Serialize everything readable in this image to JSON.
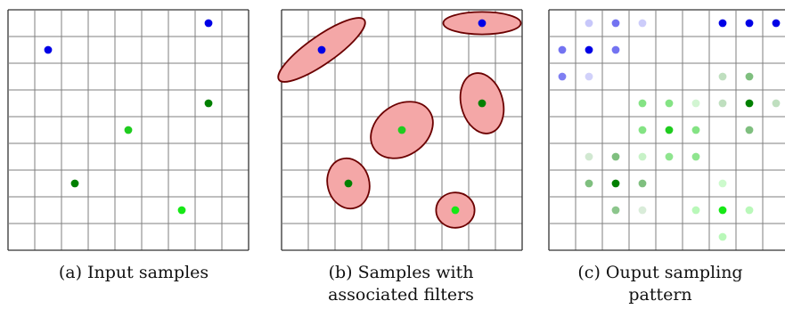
{
  "colors": {
    "grid": "#7f7f7f",
    "blue": "#0000e6",
    "green_dark": "#008000",
    "green_mid": "#1fcc1f",
    "green_bright": "#16e816",
    "ellipse_fill": "#f4a7a7",
    "ellipse_stroke": "#6b0000"
  },
  "panels": [
    {
      "id": "a",
      "caption_lines": [
        "(a) Input samples"
      ],
      "samples": [
        {
          "col": 7.5,
          "row": 0.5,
          "color": "blue"
        },
        {
          "col": 1.5,
          "row": 1.5,
          "color": "blue"
        },
        {
          "col": 7.5,
          "row": 3.5,
          "color": "green_dark"
        },
        {
          "col": 4.5,
          "row": 4.5,
          "color": "green_mid"
        },
        {
          "col": 2.5,
          "row": 6.5,
          "color": "green_dark"
        },
        {
          "col": 6.5,
          "row": 7.5,
          "color": "green_bright"
        }
      ]
    },
    {
      "id": "b",
      "caption_lines": [
        "(b) Samples with",
        "associated filters"
      ],
      "filters": [
        {
          "col": 7.5,
          "row": 0.5,
          "rx": 1.45,
          "ry": 0.42,
          "angle": 0,
          "color": "blue"
        },
        {
          "col": 1.5,
          "row": 1.5,
          "rx": 1.95,
          "ry": 0.52,
          "angle": -35,
          "color": "blue"
        },
        {
          "col": 7.5,
          "row": 3.5,
          "rx": 1.15,
          "ry": 0.78,
          "angle": 75,
          "color": "green_dark"
        },
        {
          "col": 4.5,
          "row": 4.5,
          "rx": 1.25,
          "ry": 0.95,
          "angle": -35,
          "color": "green_mid"
        },
        {
          "col": 2.5,
          "row": 6.5,
          "rx": 0.95,
          "ry": 0.78,
          "angle": 75,
          "color": "green_dark"
        },
        {
          "col": 6.5,
          "row": 7.5,
          "rx": 0.72,
          "ry": 0.66,
          "angle": 0,
          "color": "green_bright"
        }
      ]
    },
    {
      "id": "c",
      "caption_lines": [
        "(c) Ouput sampling",
        "pattern"
      ],
      "points": [
        {
          "col": 1.5,
          "row": 0.5,
          "color": "blue",
          "alpha": 0.22
        },
        {
          "col": 2.5,
          "row": 0.5,
          "color": "blue",
          "alpha": 0.55
        },
        {
          "col": 3.5,
          "row": 0.5,
          "color": "blue",
          "alpha": 0.2
        },
        {
          "col": 6.5,
          "row": 0.5,
          "color": "blue",
          "alpha": 1
        },
        {
          "col": 7.5,
          "row": 0.5,
          "color": "blue",
          "alpha": 1
        },
        {
          "col": 8.5,
          "row": 0.5,
          "color": "blue",
          "alpha": 1
        },
        {
          "col": 0.5,
          "row": 1.5,
          "color": "blue",
          "alpha": 0.55
        },
        {
          "col": 1.5,
          "row": 1.5,
          "color": "blue",
          "alpha": 1
        },
        {
          "col": 2.5,
          "row": 1.5,
          "color": "blue",
          "alpha": 0.55
        },
        {
          "col": 0.5,
          "row": 2.5,
          "color": "blue",
          "alpha": 0.5
        },
        {
          "col": 1.5,
          "row": 2.5,
          "color": "blue",
          "alpha": 0.18
        },
        {
          "col": 6.5,
          "row": 2.5,
          "color": "green_dark",
          "alpha": 0.25
        },
        {
          "col": 7.5,
          "row": 2.5,
          "color": "green_dark",
          "alpha": 0.5
        },
        {
          "col": 3.5,
          "row": 3.5,
          "color": "green_mid",
          "alpha": 0.55
        },
        {
          "col": 4.5,
          "row": 3.5,
          "color": "green_mid",
          "alpha": 0.55
        },
        {
          "col": 5.5,
          "row": 3.5,
          "color": "green_mid",
          "alpha": 0.2
        },
        {
          "col": 6.5,
          "row": 3.5,
          "color": "green_dark",
          "alpha": 0.25
        },
        {
          "col": 7.5,
          "row": 3.5,
          "color": "green_dark",
          "alpha": 1
        },
        {
          "col": 8.5,
          "row": 3.5,
          "color": "green_dark",
          "alpha": 0.25
        },
        {
          "col": 3.5,
          "row": 4.5,
          "color": "green_mid",
          "alpha": 0.55
        },
        {
          "col": 4.5,
          "row": 4.5,
          "color": "green_mid",
          "alpha": 1
        },
        {
          "col": 5.5,
          "row": 4.5,
          "color": "green_mid",
          "alpha": 0.55
        },
        {
          "col": 7.5,
          "row": 4.5,
          "color": "green_dark",
          "alpha": 0.5
        },
        {
          "col": 1.5,
          "row": 5.5,
          "color": "green_dark",
          "alpha": 0.18
        },
        {
          "col": 2.5,
          "row": 5.5,
          "color": "green_dark",
          "alpha": 0.5
        },
        {
          "col": 3.5,
          "row": 5.5,
          "color": "green_mid",
          "alpha": 0.25
        },
        {
          "col": 4.5,
          "row": 5.5,
          "color": "green_mid",
          "alpha": 0.5
        },
        {
          "col": 5.5,
          "row": 5.5,
          "color": "green_mid",
          "alpha": 0.5
        },
        {
          "col": 1.5,
          "row": 6.5,
          "color": "green_dark",
          "alpha": 0.5
        },
        {
          "col": 2.5,
          "row": 6.5,
          "color": "green_dark",
          "alpha": 1
        },
        {
          "col": 3.5,
          "row": 6.5,
          "color": "green_dark",
          "alpha": 0.5
        },
        {
          "col": 6.5,
          "row": 6.5,
          "color": "green_bright",
          "alpha": 0.22
        },
        {
          "col": 2.5,
          "row": 7.5,
          "color": "green_dark",
          "alpha": 0.45
        },
        {
          "col": 3.5,
          "row": 7.5,
          "color": "green_dark",
          "alpha": 0.15
        },
        {
          "col": 5.5,
          "row": 7.5,
          "color": "green_bright",
          "alpha": 0.3
        },
        {
          "col": 6.5,
          "row": 7.5,
          "color": "green_bright",
          "alpha": 1
        },
        {
          "col": 7.5,
          "row": 7.5,
          "color": "green_bright",
          "alpha": 0.3
        },
        {
          "col": 6.5,
          "row": 8.5,
          "color": "green_bright",
          "alpha": 0.3
        }
      ]
    }
  ]
}
